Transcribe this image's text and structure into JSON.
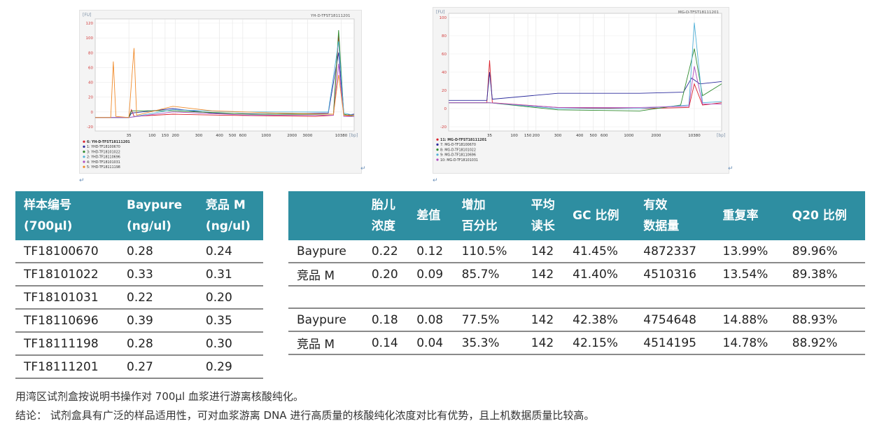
{
  "charts": [
    {
      "title": "YH-D-TFST18111201",
      "yunit": "[FU]",
      "xunit": "[bp]",
      "yticks": [
        "120",
        "100",
        "80",
        "60",
        "40",
        "20",
        "0",
        "-20"
      ],
      "xticks": [
        "35",
        "100",
        "150",
        "200",
        "300",
        "400",
        "500",
        "600",
        "1000",
        "2000",
        "3000",
        "10380"
      ],
      "legend": [
        {
          "label": "6: YH-D-TFST18111201",
          "color": "#d9212b"
        },
        {
          "label": "1: YHD-TF18100670",
          "color": "#2b2b9c"
        },
        {
          "label": "3: YHD-TF18101022",
          "color": "#2e8b2e"
        },
        {
          "label": "2: YHD-TF18110696",
          "color": "#4fb0d8"
        },
        {
          "label": "4: YHD-TF18101031",
          "color": "#b04fc0"
        },
        {
          "label": "5: YHD-TF18111198",
          "color": "#f08a2a"
        }
      ]
    },
    {
      "title": "MG-D-TFST18111201",
      "yunit": "[FU]",
      "xunit": "[bp]",
      "yticks": [
        "100",
        "80",
        "60",
        "40",
        "20",
        "0",
        "-20"
      ],
      "xticks": [
        "35",
        "100",
        "150",
        "200",
        "300",
        "400",
        "500",
        "600",
        "1000",
        "2000",
        "10380"
      ],
      "legend": [
        {
          "label": "11: MG-D-TFST18111201",
          "color": "#d9212b"
        },
        {
          "label": "7: MG-D-TF18100670",
          "color": "#2b2b9c"
        },
        {
          "label": "8: MG-D-TF18101022",
          "color": "#2e8b2e"
        },
        {
          "label": "9: MG-D-TF18110696",
          "color": "#4fb0d8"
        },
        {
          "label": "10: MG-D-TF18101031",
          "color": "#b04fc0"
        }
      ]
    }
  ],
  "table1": {
    "headers": [
      [
        "样本编号",
        "(700μl)"
      ],
      [
        "Baypure",
        "(ng/ul)"
      ],
      [
        "竞品 M",
        "(ng/ul)"
      ]
    ],
    "rows": [
      [
        "TF18100670",
        "0.28",
        "0.24"
      ],
      [
        "TF18101022",
        "0.33",
        "0.31"
      ],
      [
        "TF18101031",
        "0.22",
        "0.20"
      ],
      [
        "TF18110696",
        "0.39",
        "0.35"
      ],
      [
        "TF18111198",
        "0.28",
        "0.30"
      ],
      [
        "TF18111201",
        "0.27",
        "0.29"
      ]
    ]
  },
  "table2": {
    "headers": [
      [
        "",
        ""
      ],
      [
        "胎儿",
        "浓度"
      ],
      [
        "差值",
        ""
      ],
      [
        "增加",
        "百分比"
      ],
      [
        "平均",
        "读长"
      ],
      [
        "GC 比例",
        ""
      ],
      [
        "有效",
        "数据量"
      ],
      [
        "重复率",
        ""
      ],
      [
        "Q20 比例",
        ""
      ]
    ],
    "rows": [
      [
        "Baypure",
        "0.22",
        "0.12",
        "110.5%",
        "142",
        "41.45%",
        "4872337",
        "13.99%",
        "89.96%"
      ],
      [
        "竞品 M",
        "0.20",
        "0.09",
        "85.7%",
        "142",
        "41.40%",
        "4510316",
        "13.54%",
        "89.38%"
      ],
      [
        "",
        "",
        "",
        "",
        "",
        "",
        "",
        "",
        ""
      ],
      [
        "Baypure",
        "0.18",
        "0.08",
        "77.5%",
        "142",
        "42.38%",
        "4754648",
        "14.88%",
        "88.93%"
      ],
      [
        "竞品 M",
        "0.14",
        "0.04",
        "35.3%",
        "142",
        "42.15%",
        "4514195",
        "14.78%",
        "88.92%"
      ]
    ]
  },
  "notes": {
    "line1": "用湾区试剂盒按说明书操作对 700μl 血浆进行游离核酸纯化。",
    "line2": "结论：  试剂盒具有广泛的样品适用性，可对血浆游离 DNA 进行高质量的核酸纯化浓度对比有优势，且上机数据质量比较高。"
  }
}
